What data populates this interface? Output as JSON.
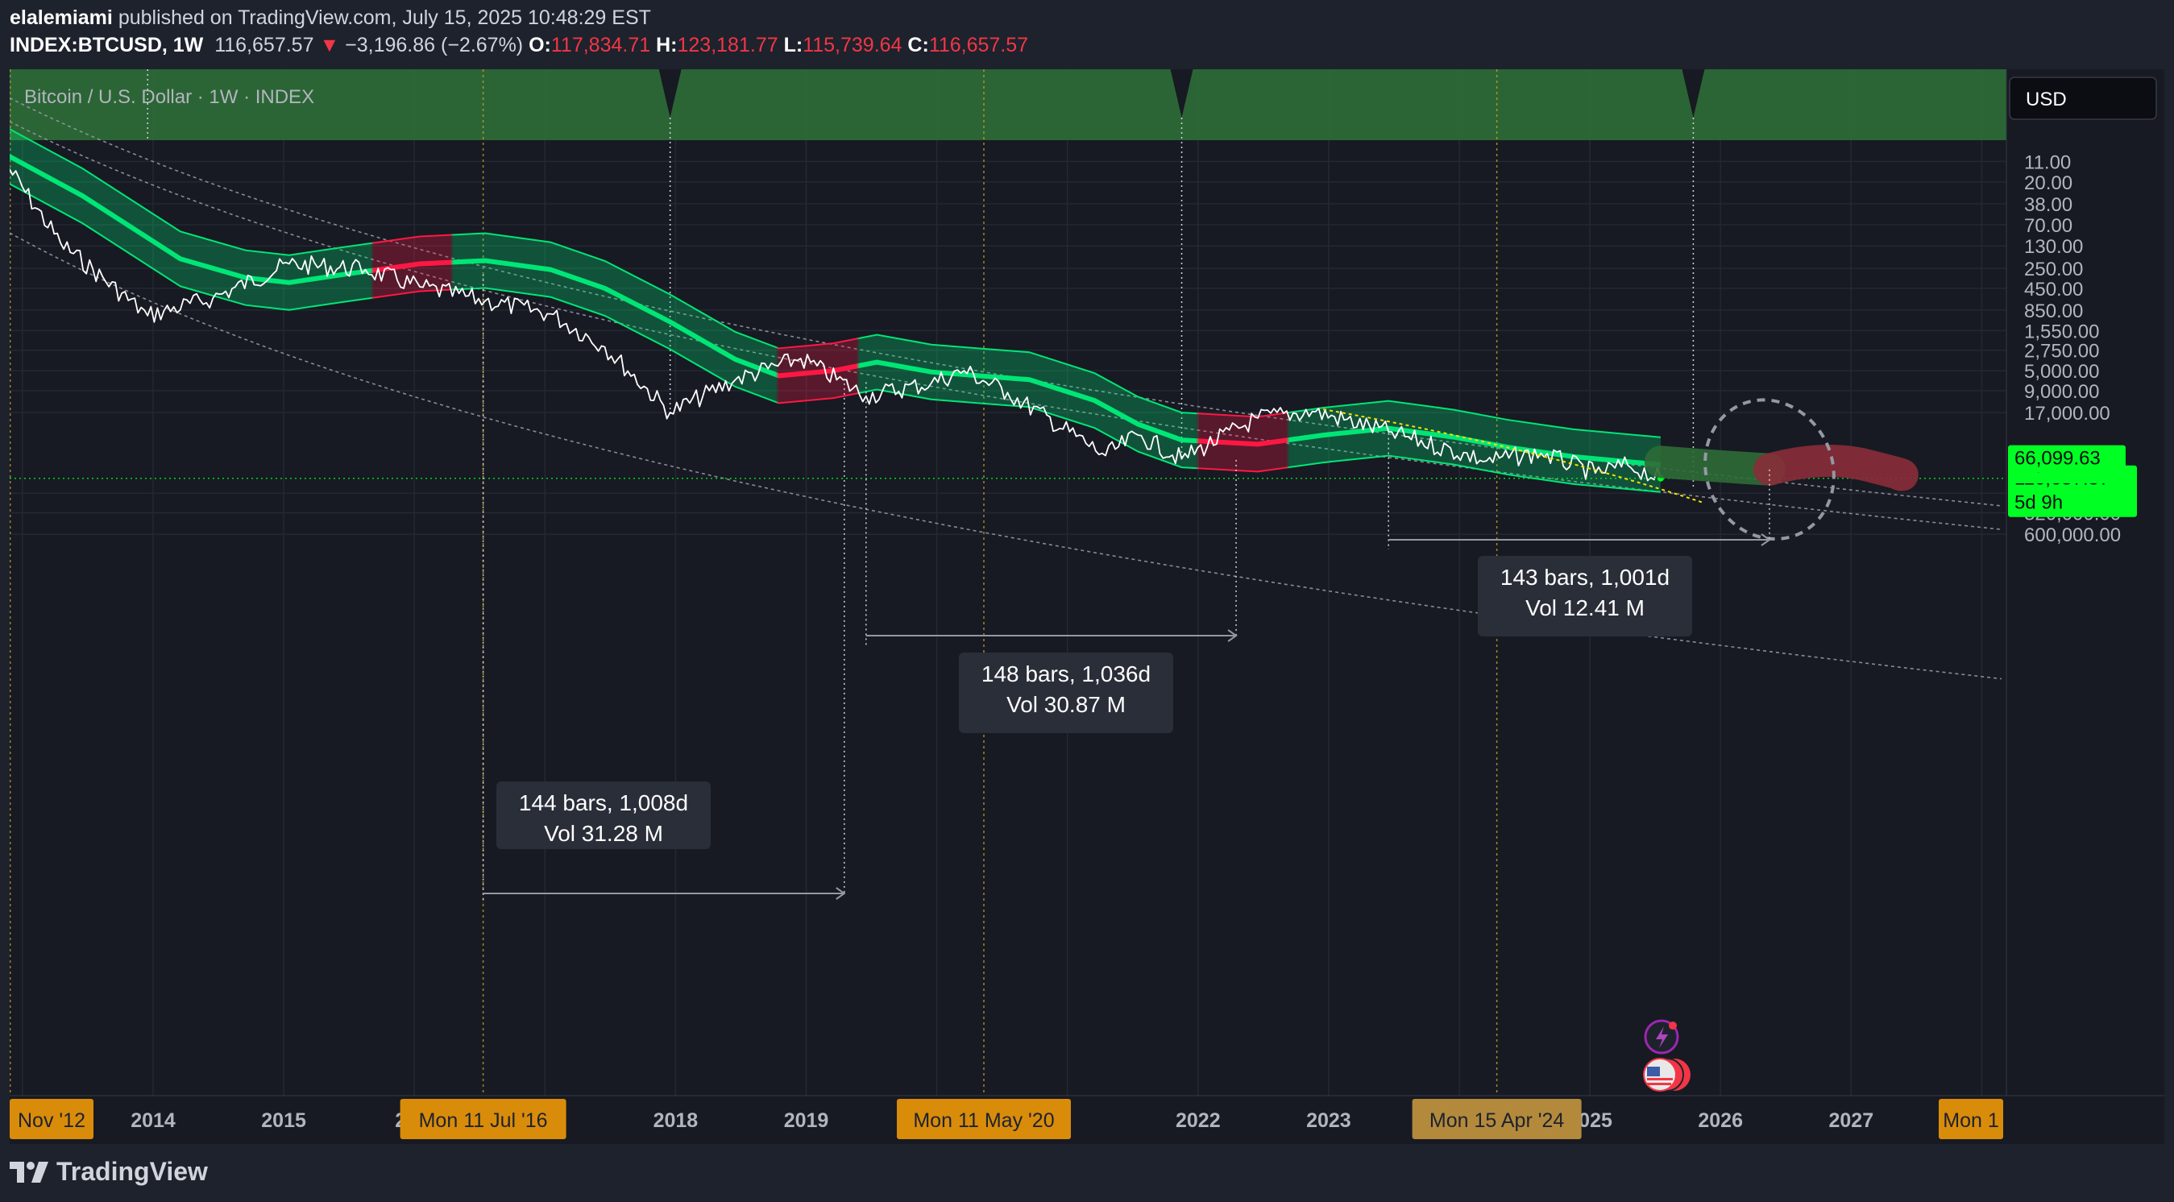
{
  "header": {
    "author": "elalemiami",
    "published": "published on TradingView.com, July 15, 2025 10:48:29 EST",
    "symbol": "INDEX:BTCUSD, 1W",
    "price": "116,657.57",
    "arrow": "▼",
    "change": "−3,196.86 (−2.67%)",
    "o_label": "O:",
    "o_value": "117,834.71",
    "h_label": "H:",
    "h_value": "123,181.77",
    "l_label": "L:",
    "l_value": "115,739.64",
    "c_label": "C:",
    "c_value": "116,657.57"
  },
  "chart": {
    "legend_title": "Bitcoin / U.S. Dollar · 1W · INDEX",
    "currency": "USD",
    "price_ticks": [
      "600,000.00",
      "320,000.00",
      "180,000.00",
      "17,000.00",
      "9,000.00",
      "5,000.00",
      "2,750.00",
      "1,550.00",
      "850.00",
      "450.00",
      "250.00",
      "130.00",
      "70.00",
      "38.00",
      "20.00",
      "11.00"
    ],
    "price_labels": [
      {
        "text": "116,657.57",
        "sub": "5d 9h",
        "price": 116657.57
      },
      {
        "text": "90,340.84",
        "price": 90340.84
      },
      {
        "text": "78,220.24",
        "price": 78220.24
      },
      {
        "text": "66,099.63",
        "price": 66099.63
      }
    ],
    "year_ticks": [
      "2014",
      "2015",
      "20",
      "2018",
      "2019",
      "21",
      "2022",
      "2023",
      "2025",
      "2026",
      "2027"
    ],
    "date_badges": [
      "Nov '12",
      "Mon 11 Jul '16",
      "Mon 11 May '20",
      "Mon 15 Apr '24",
      "Mon 1"
    ],
    "measure_boxes": [
      {
        "line1": "144 bars, 1,008d",
        "line2": "Vol 31.28 M"
      },
      {
        "line1": "148 bars, 1,036d",
        "line2": "Vol 30.87 M"
      },
      {
        "line1": "143 bars, 1,001d",
        "line2": "Vol 12.41 M"
      }
    ]
  },
  "footer": {
    "brand": "TradingView"
  },
  "colors": {
    "background": "#1e222d",
    "price_line": "#ffffff",
    "band_green": "#00e676",
    "band_red": "#ff1744",
    "halving_line": "#c9a227",
    "badge": "#d98c0a",
    "top_zone": "#2e6b37",
    "current_price": "#00ff22"
  },
  "chart_data": {
    "type": "line",
    "title": "Bitcoin / U.S. Dollar · 1W · INDEX",
    "xlabel": "",
    "ylabel": "",
    "y_scale": "log",
    "xlim": [
      "2012-11-01",
      "2027-12-01"
    ],
    "ylim": [
      6,
      1000000
    ],
    "x": [
      "2012-11",
      "2013-04",
      "2013-12",
      "2014-06",
      "2015-01",
      "2015-08",
      "2016-01",
      "2016-07",
      "2017-01",
      "2017-06",
      "2017-12",
      "2018-06",
      "2018-12",
      "2019-06",
      "2019-12",
      "2020-03",
      "2020-07",
      "2021-04",
      "2021-07",
      "2021-11",
      "2022-06",
      "2022-11",
      "2023-06",
      "2024-03",
      "2024-08",
      "2025-01",
      "2025-04",
      "2025-07"
    ],
    "series": [
      {
        "values": [
          12,
          120,
          1000,
          600,
          220,
          260,
          430,
          650,
          950,
          2500,
          17000,
          6500,
          3500,
          10500,
          7200,
          5000,
          9500,
          60000,
          33000,
          66000,
          20000,
          16500,
          30000,
          70000,
          56000,
          100000,
          80000,
          116657.57
        ]
      }
    ],
    "halvings": [
      "2012-11-28",
      "2016-07-11",
      "2020-05-11",
      "2024-04-15"
    ],
    "measurements": [
      {
        "bars": 144,
        "days": 1008,
        "volume": "31.28 M"
      },
      {
        "bars": 148,
        "days": 1036,
        "volume": "30.87 M"
      },
      {
        "bars": 143,
        "days": 1001,
        "volume": "12.41 M"
      }
    ]
  }
}
